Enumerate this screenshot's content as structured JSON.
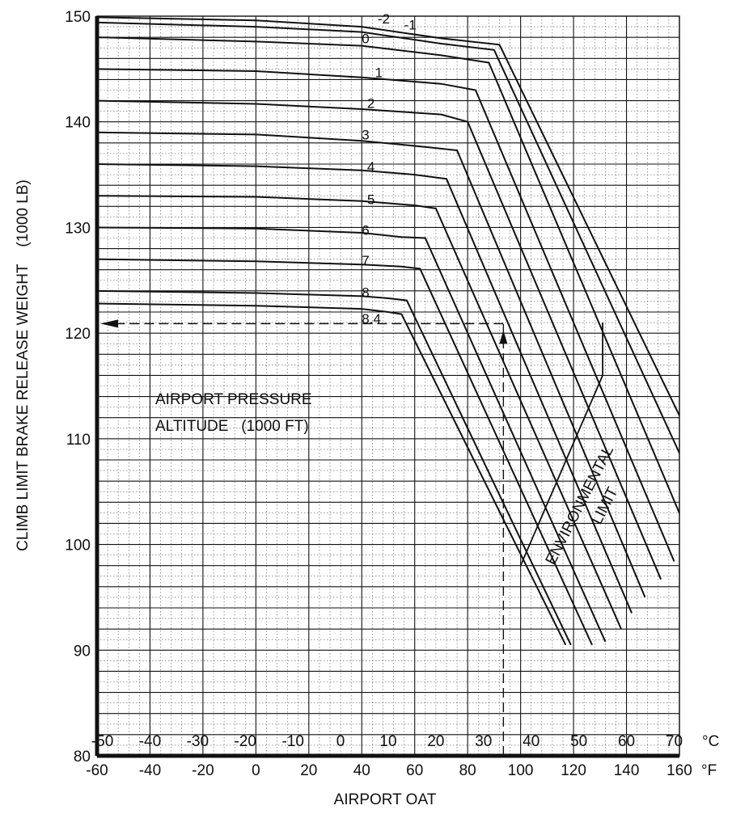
{
  "chart_data": {
    "type": "line",
    "title": "",
    "ylabel": "CLIMB LIMIT BRAKE RELEASE WEIGHT    (1000 LB)",
    "xlabel": "AIRPORT OAT",
    "ylim": [
      80,
      150
    ],
    "xlim_f": [
      -60,
      160
    ],
    "y_ticks": [
      "80",
      "90",
      "100",
      "110",
      "120",
      "130",
      "140",
      "150"
    ],
    "x_ticks_f": [
      "-60",
      "-40",
      "-20",
      "0",
      "20",
      "40",
      "60",
      "80",
      "100",
      "120",
      "140",
      "160"
    ],
    "x_unit_f": "°F",
    "x_ticks_c": [
      "-50",
      "-40",
      "-30",
      "-20",
      "-10",
      "0",
      "10",
      "20",
      "30",
      "40",
      "50",
      "60",
      "70"
    ],
    "x_unit_c": "°C",
    "grid": true,
    "annotation_title": [
      "AIRPORT PRESSURE",
      "ALTITUDE   (1000 FT)"
    ],
    "environmental_label": [
      "ENVIRONMENTAL",
      "LIMIT"
    ],
    "series": [
      {
        "name": "-2",
        "points": [
          [
            -60,
            149.9
          ],
          [
            0,
            149.6
          ],
          [
            40,
            149.0
          ],
          [
            70,
            147.9
          ],
          [
            92,
            147.3
          ],
          [
            172,
            106.0
          ]
        ]
      },
      {
        "name": "-1",
        "points": [
          [
            -60,
            149.4
          ],
          [
            0,
            149.0
          ],
          [
            40,
            148.5
          ],
          [
            70,
            147.4
          ],
          [
            90,
            146.8
          ],
          [
            170,
            103.2
          ]
        ]
      },
      {
        "name": "0",
        "points": [
          [
            -60,
            148.0
          ],
          [
            0,
            147.6
          ],
          [
            40,
            147.2
          ],
          [
            70,
            146.3
          ],
          [
            88,
            145.6
          ],
          [
            165,
            100.0
          ]
        ]
      },
      {
        "name": "1",
        "points": [
          [
            -60,
            145.0
          ],
          [
            0,
            144.8
          ],
          [
            40,
            144.2
          ],
          [
            70,
            143.6
          ],
          [
            83,
            143.0
          ],
          [
            158,
            98.4
          ]
        ]
      },
      {
        "name": "2",
        "points": [
          [
            -60,
            142.0
          ],
          [
            0,
            141.7
          ],
          [
            40,
            141.2
          ],
          [
            70,
            140.7
          ],
          [
            80,
            140.0
          ],
          [
            153,
            96.7
          ]
        ]
      },
      {
        "name": "3",
        "points": [
          [
            -60,
            139.0
          ],
          [
            0,
            138.8
          ],
          [
            40,
            138.2
          ],
          [
            65,
            137.6
          ],
          [
            76,
            137.3
          ],
          [
            147,
            95.0
          ]
        ]
      },
      {
        "name": "4",
        "points": [
          [
            -60,
            136.0
          ],
          [
            0,
            135.8
          ],
          [
            40,
            135.4
          ],
          [
            60,
            135.0
          ],
          [
            72,
            134.6
          ],
          [
            142,
            93.5
          ]
        ]
      },
      {
        "name": "5",
        "points": [
          [
            -60,
            133.0
          ],
          [
            0,
            132.9
          ],
          [
            40,
            132.5
          ],
          [
            60,
            132.1
          ],
          [
            68,
            131.8
          ],
          [
            138,
            92.0
          ]
        ]
      },
      {
        "name": "6",
        "points": [
          [
            -60,
            130.0
          ],
          [
            0,
            129.9
          ],
          [
            40,
            129.5
          ],
          [
            55,
            129.1
          ],
          [
            64,
            129.0
          ],
          [
            132,
            90.8
          ]
        ]
      },
      {
        "name": "7",
        "points": [
          [
            -60,
            127.0
          ],
          [
            0,
            126.8
          ],
          [
            40,
            126.5
          ],
          [
            55,
            126.3
          ],
          [
            62,
            126.1
          ],
          [
            127,
            90.5
          ]
        ]
      },
      {
        "name": "8",
        "points": [
          [
            -60,
            124.0
          ],
          [
            0,
            123.8
          ],
          [
            40,
            123.5
          ],
          [
            50,
            123.3
          ],
          [
            57,
            123.1
          ],
          [
            119,
            90.5
          ]
        ]
      },
      {
        "name": "8.4",
        "points": [
          [
            -60,
            122.8
          ],
          [
            0,
            122.6
          ],
          [
            40,
            122.3
          ],
          [
            50,
            122.0
          ],
          [
            55,
            121.8
          ],
          [
            117,
            90.5
          ]
        ]
      }
    ],
    "environmental_limit": [
      [
        100,
        98.0
      ],
      [
        131,
        116.0
      ],
      [
        131,
        121.0
      ]
    ],
    "example": {
      "oat_f": 93.5,
      "weight": 120.9
    }
  }
}
